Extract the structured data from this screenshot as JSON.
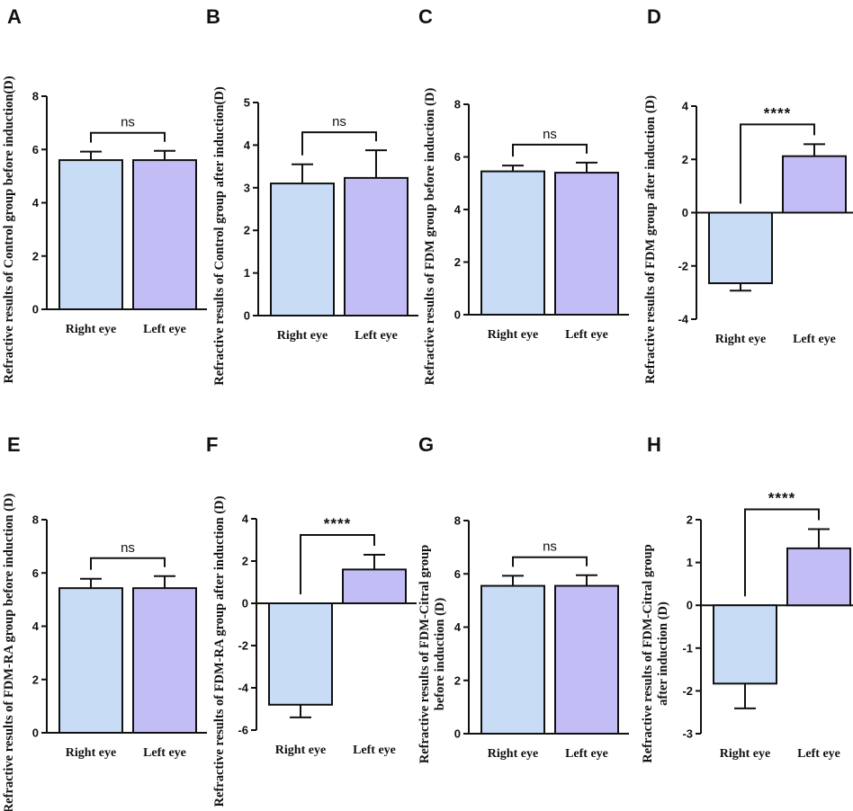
{
  "figure": {
    "colors": {
      "right_eye": "#c8dcf6",
      "left_eye": "#c3bdf6",
      "stroke": "#111111"
    }
  },
  "chart_data": [
    {
      "panel": "A",
      "type": "bar",
      "categories": [
        "Right eye",
        "Left eye"
      ],
      "values": [
        5.6,
        5.6
      ],
      "errors": [
        0.32,
        0.35
      ],
      "ylabel": [
        "Refractive results of Control group before induction(D)"
      ],
      "ylim": [
        0,
        8
      ],
      "yticks": [
        0,
        2,
        4,
        6,
        8
      ],
      "significance": "ns"
    },
    {
      "panel": "B",
      "type": "bar",
      "categories": [
        "Right eye",
        "Left eye"
      ],
      "values": [
        3.1,
        3.23
      ],
      "errors": [
        0.45,
        0.65
      ],
      "ylabel": [
        "Refractive results of Control group after induction(D)"
      ],
      "ylim": [
        0,
        5
      ],
      "yticks": [
        0,
        1,
        2,
        3,
        4,
        5
      ],
      "significance": "ns"
    },
    {
      "panel": "C",
      "type": "bar",
      "categories": [
        "Right eye",
        "Left eye"
      ],
      "values": [
        5.45,
        5.4
      ],
      "errors": [
        0.22,
        0.38
      ],
      "ylabel": [
        "Refractive results of FDM group before induction (D)"
      ],
      "ylim": [
        0,
        8
      ],
      "yticks": [
        0,
        2,
        4,
        6,
        8
      ],
      "significance": "ns"
    },
    {
      "panel": "D",
      "type": "bar",
      "categories": [
        "Right eye",
        "Left eye"
      ],
      "values": [
        -2.65,
        2.12
      ],
      "errors": [
        0.28,
        0.45
      ],
      "ylabel": [
        "Refractive results of FDM group after induction (D)"
      ],
      "ylim": [
        -4,
        4
      ],
      "yticks": [
        -4,
        -2,
        0,
        2,
        4
      ],
      "significance": "****"
    },
    {
      "panel": "E",
      "type": "bar",
      "categories": [
        "Right eye",
        "Left eye"
      ],
      "values": [
        5.43,
        5.43
      ],
      "errors": [
        0.35,
        0.45
      ],
      "ylabel": [
        "Refractive results of FDM-RA group before induction (D)"
      ],
      "ylim": [
        0,
        8
      ],
      "yticks": [
        0,
        2,
        4,
        6,
        8
      ],
      "significance": "ns"
    },
    {
      "panel": "F",
      "type": "bar",
      "categories": [
        "Right eye",
        "Left eye"
      ],
      "values": [
        -4.8,
        1.6
      ],
      "errors": [
        0.6,
        0.7
      ],
      "ylabel": [
        "Refractive results of FDM-RA group after induction (D)"
      ],
      "ylim": [
        -6,
        4
      ],
      "yticks": [
        -6,
        -4,
        -2,
        0,
        2,
        4
      ],
      "significance": "****"
    },
    {
      "panel": "G",
      "type": "bar",
      "categories": [
        "Right eye",
        "Left eye"
      ],
      "values": [
        5.55,
        5.55
      ],
      "errors": [
        0.38,
        0.4
      ],
      "ylabel": [
        "Refractive results of FDM-Citral group",
        "before induction (D)"
      ],
      "ylim": [
        0,
        8
      ],
      "yticks": [
        0,
        2,
        4,
        6,
        8
      ],
      "significance": "ns"
    },
    {
      "panel": "H",
      "type": "bar",
      "categories": [
        "Right eye",
        "Left eye"
      ],
      "values": [
        -1.83,
        1.33
      ],
      "errors": [
        0.58,
        0.45
      ],
      "ylabel": [
        "Refractive results of FDM-Citral group",
        "after induction (D)"
      ],
      "ylim": [
        -3,
        2
      ],
      "yticks": [
        -3,
        -2,
        -1,
        0,
        1,
        2
      ],
      "significance": "****"
    }
  ]
}
